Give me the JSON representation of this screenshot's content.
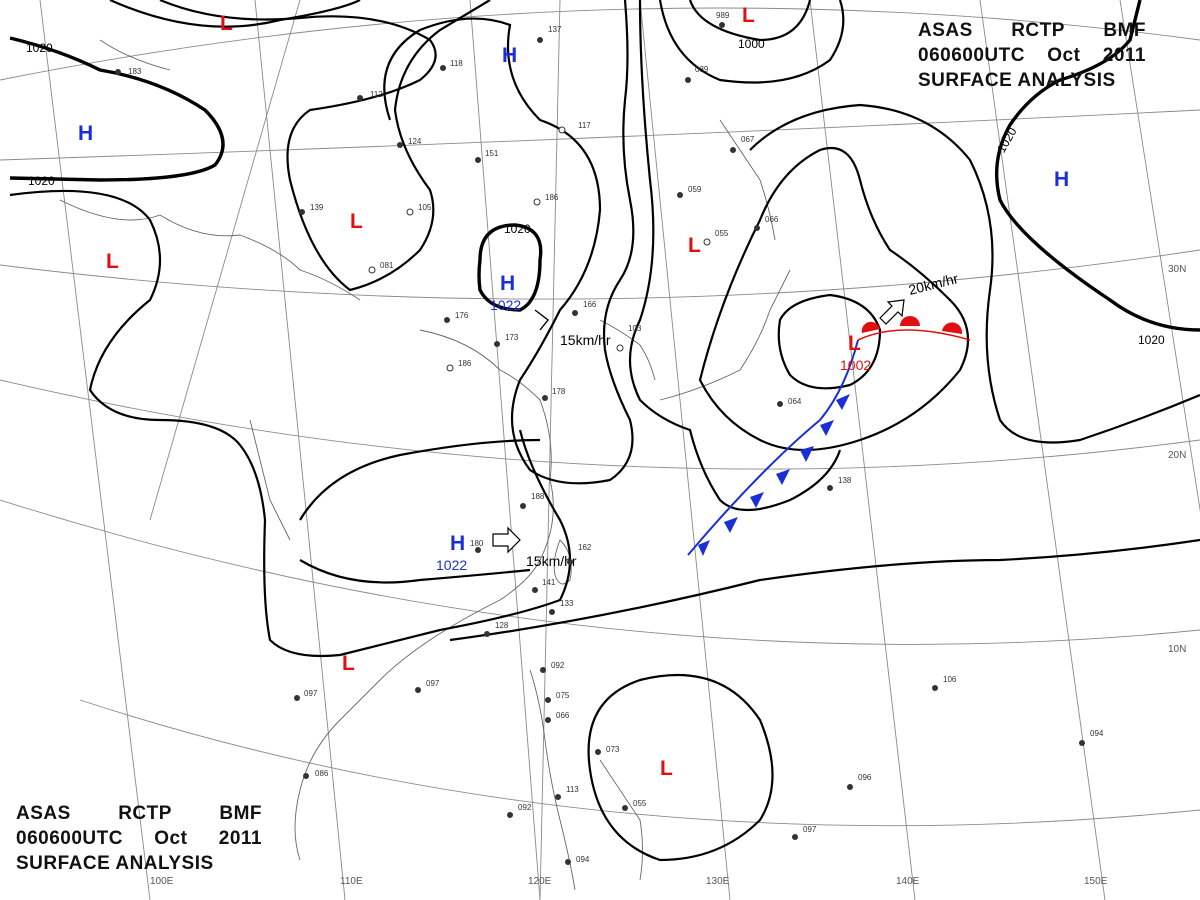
{
  "title": {
    "line1": [
      "ASAS",
      "RCTP",
      "BMF"
    ],
    "line2": [
      "060600UTC",
      "Oct",
      "2011"
    ],
    "line3": "SURFACE ANALYSIS"
  },
  "lat_labels": [
    "30N",
    "20N",
    "10N"
  ],
  "lon_labels": [
    "100E",
    "110E",
    "120E",
    "130E",
    "140E",
    "150E"
  ],
  "isobar_labels": [
    "1020",
    "1020",
    "1020",
    "1020",
    "1020",
    "1000"
  ],
  "systems": [
    {
      "type": "L",
      "pressure": ""
    },
    {
      "type": "L",
      "pressure": ""
    },
    {
      "type": "L",
      "pressure": ""
    },
    {
      "type": "L",
      "pressure": ""
    },
    {
      "type": "L",
      "pressure": ""
    },
    {
      "type": "L",
      "pressure": ""
    },
    {
      "type": "L",
      "pressure": "1002"
    },
    {
      "type": "L",
      "pressure": ""
    },
    {
      "type": "H",
      "pressure": ""
    },
    {
      "type": "H",
      "pressure": ""
    },
    {
      "type": "H",
      "pressure": "1022"
    },
    {
      "type": "H",
      "pressure": "1022"
    },
    {
      "type": "H",
      "pressure": ""
    }
  ],
  "motion_labels": [
    "15km/hr",
    "15km/hr",
    "20km/hr"
  ],
  "stations": [
    "183",
    "112",
    "124",
    "118",
    "151",
    "105",
    "139",
    "081",
    "176",
    "186",
    "173",
    "186",
    "166",
    "103",
    "178",
    "188",
    "162",
    "180",
    "141",
    "133",
    "128",
    "097",
    "097",
    "092",
    "075",
    "066",
    "086",
    "113",
    "092",
    "073",
    "055",
    "094",
    "097",
    "096",
    "106",
    "094",
    "138",
    "064",
    "055",
    "066",
    "059",
    "067",
    "039",
    "989",
    "117",
    "137"
  ],
  "colors": {
    "high": "#1a2fd6",
    "low": "#e01010",
    "cold_front": "#1a2fd6",
    "warm_front": "#e01010",
    "isobar": "#000000",
    "grid": "#8a8a8a"
  }
}
